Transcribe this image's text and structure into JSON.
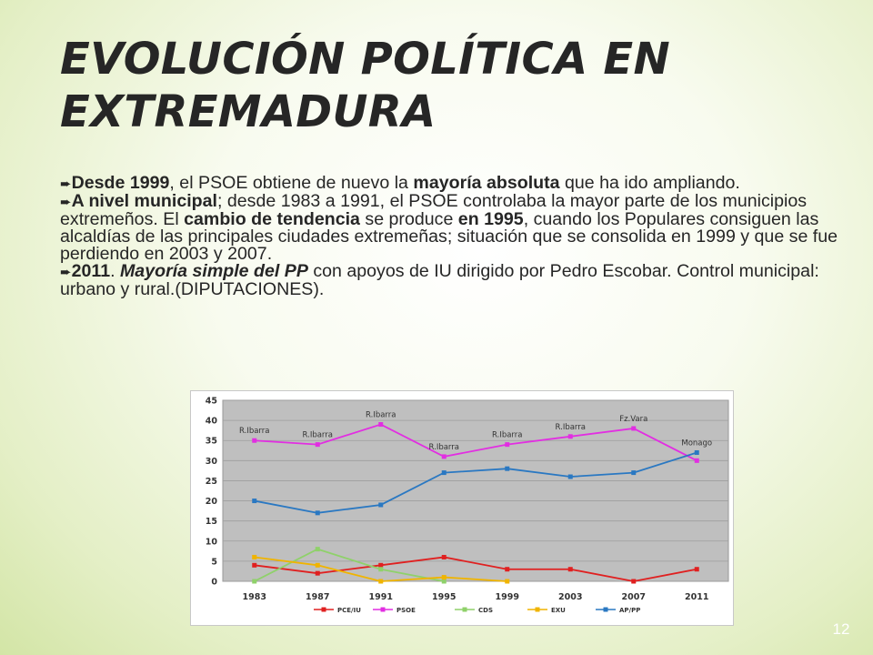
{
  "slide": {
    "title": "EVOLUCIÓN POLÍTICA EN EXTREMADURA",
    "page_number": "12",
    "paragraphs": [
      [
        {
          "t": "Desde 1999",
          "b": true
        },
        {
          "t": ", el PSOE obtiene de nuevo la "
        },
        {
          "t": "mayoría absoluta",
          "b": true
        },
        {
          "t": " que ha ido ampliando."
        }
      ],
      [
        {
          "t": "A nivel municipal",
          "b": true
        },
        {
          "t": "; desde 1983 a 1991, el PSOE controlaba la mayor parte de los municipios extremeños. El "
        },
        {
          "t": "cambio de tendencia",
          "b": true
        },
        {
          "t": " se produce "
        },
        {
          "t": "en 1995",
          "b": true
        },
        {
          "t": ", cuando los Populares consiguen las alcaldías de las principales ciudades extremeñas; situación que se consolida en 1999 y que se fue perdiendo en 2003 y 2007."
        }
      ],
      [
        {
          "t": "2011",
          "b": true
        },
        {
          "t": ". "
        },
        {
          "t": "Mayoría simple del PP",
          "b": true,
          "i": true
        },
        {
          "t": " con apoyos de IU dirigido por Pedro Escobar. Control municipal: urbano y rural.(DIPUTACIONES)."
        }
      ]
    ]
  },
  "chart_data": {
    "type": "line",
    "categories": [
      "1983",
      "1987",
      "1991",
      "1995",
      "1999",
      "2003",
      "2007",
      "2011"
    ],
    "ylim": [
      0,
      45
    ],
    "yticks": [
      0,
      5,
      10,
      15,
      20,
      25,
      30,
      35,
      40,
      45
    ],
    "grid": true,
    "legend": "bottom",
    "plot_background": "#bfbfbf",
    "series": [
      {
        "name": "PCE/IU",
        "color": "#e02020",
        "values": [
          4,
          2,
          4,
          6,
          3,
          3,
          0,
          3
        ]
      },
      {
        "name": "PSOE",
        "color": "#e22ee2",
        "values": [
          35,
          34,
          39,
          31,
          34,
          36,
          38,
          30
        ]
      },
      {
        "name": "CDS",
        "color": "#8fd16a",
        "values": [
          0,
          8,
          3,
          0,
          null,
          null,
          null,
          null
        ]
      },
      {
        "name": "EXU",
        "color": "#f0b400",
        "values": [
          6,
          4,
          0,
          1,
          0,
          null,
          null,
          null
        ]
      },
      {
        "name": "AP/PP",
        "color": "#2a78c2",
        "values": [
          20,
          17,
          19,
          27,
          28,
          26,
          27,
          32
        ]
      }
    ],
    "annotations": [
      {
        "label": "R.Ibarra",
        "category": "1983",
        "y": 35,
        "above": true
      },
      {
        "label": "R.Ibarra",
        "category": "1987",
        "y": 34,
        "above": true
      },
      {
        "label": "R.Ibarra",
        "category": "1991",
        "y": 39,
        "above": true
      },
      {
        "label": "R.Ibarra",
        "category": "1995",
        "y": 31,
        "above": true
      },
      {
        "label": "R.Ibarra",
        "category": "1999",
        "y": 34,
        "above": true
      },
      {
        "label": "R.Ibarra",
        "category": "2003",
        "y": 36,
        "above": true
      },
      {
        "label": "Fz.Vara",
        "category": "2007",
        "y": 38,
        "above": true
      },
      {
        "label": "Monago",
        "category": "2011",
        "y": 32,
        "above": true
      }
    ]
  }
}
